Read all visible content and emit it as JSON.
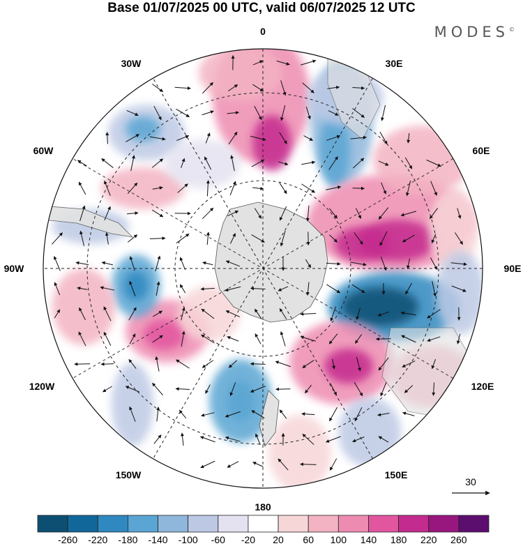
{
  "title": "Base 01/07/2025 00 UTC, valid 06/07/2025 12 UTC",
  "brand": "MODES",
  "brand_mark": "©",
  "meridian_labels": {
    "m0": "0",
    "m30e": "30E",
    "m60e": "60E",
    "m90e": "90E",
    "m120e": "120E",
    "m150e": "150E",
    "m180": "180",
    "m150w": "150W",
    "m120w": "120W",
    "m90w": "90W",
    "m60w": "60W",
    "m30w": "30W"
  },
  "reference_vector": {
    "label": "30",
    "value": 30
  },
  "colorbar": {
    "labels": [
      "-260",
      "-220",
      "-180",
      "-140",
      "-100",
      "-60",
      "-20",
      "20",
      "60",
      "100",
      "140",
      "180",
      "220",
      "260"
    ],
    "colors": [
      "#0d4f73",
      "#12679a",
      "#2f88bf",
      "#5aa5d3",
      "#8fb7db",
      "#bdc9e4",
      "#e4e2f0",
      "#ffffff",
      "#f7d6d8",
      "#f3b3c2",
      "#ee8bb0",
      "#e2559f",
      "#c42b8e",
      "#98177f",
      "#5b0e6e"
    ]
  },
  "colors": {
    "land": "#e2e2e2",
    "grid": "#333333",
    "arrow": "#111111"
  }
}
